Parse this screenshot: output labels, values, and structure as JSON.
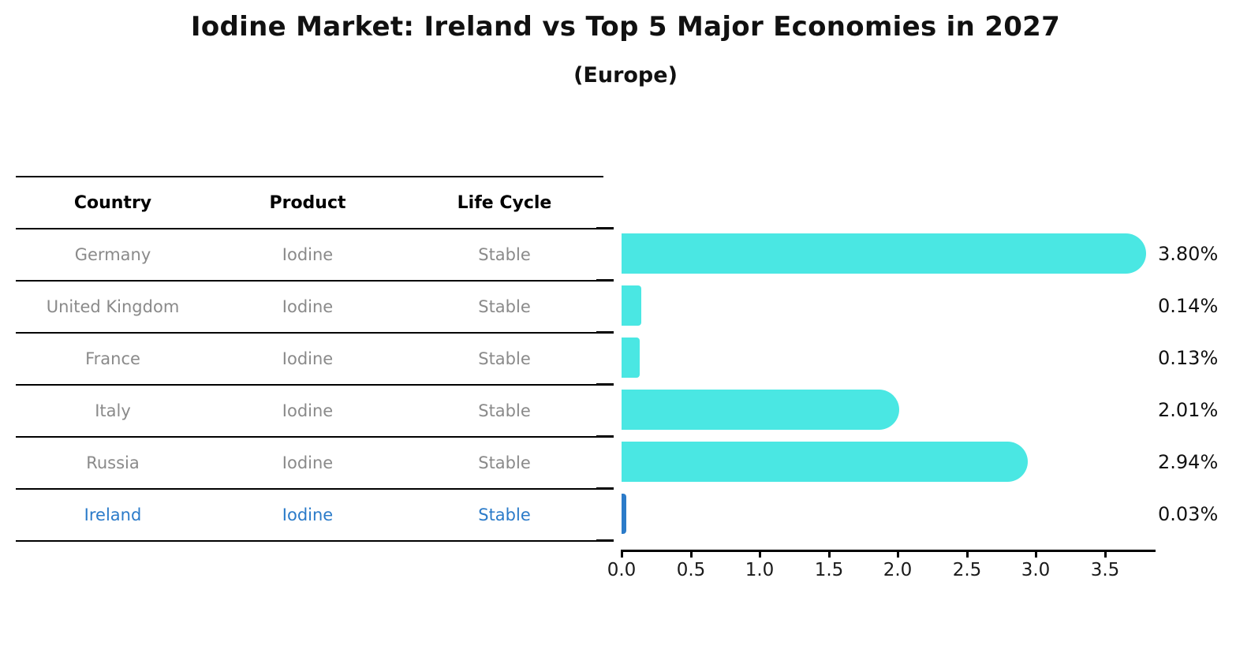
{
  "title": "Iodine Market: Ireland vs Top 5 Major Economies in 2027",
  "subtitle": "(Europe)",
  "table": {
    "headers": {
      "country": "Country",
      "product": "Product",
      "life_cycle": "Life Cycle"
    },
    "rows": [
      {
        "country": "Germany",
        "product": "Iodine",
        "life_cycle": "Stable",
        "highlight": false
      },
      {
        "country": "United Kingdom",
        "product": "Iodine",
        "life_cycle": "Stable",
        "highlight": false
      },
      {
        "country": "France",
        "product": "Iodine",
        "life_cycle": "Stable",
        "highlight": false
      },
      {
        "country": "Italy",
        "product": "Iodine",
        "life_cycle": "Stable",
        "highlight": false
      },
      {
        "country": "Russia",
        "product": "Iodine",
        "life_cycle": "Stable",
        "highlight": true
      }
    ],
    "rows_note": "sixth row is Ireland (highlighted blue)",
    "row_ireland": {
      "country": "Ireland",
      "product": "Iodine",
      "life_cycle": "Stable",
      "highlight": true
    }
  },
  "chart_data": {
    "type": "bar",
    "orientation": "horizontal",
    "title": "Iodine Market: Ireland vs Top 5 Major Economies in 2027",
    "subtitle": "(Europe)",
    "categories": [
      "Germany",
      "United Kingdom",
      "France",
      "Italy",
      "Russia",
      "Ireland"
    ],
    "values": [
      3.8,
      0.14,
      0.13,
      2.01,
      2.94,
      0.03
    ],
    "value_labels": [
      "3.80%",
      "0.14%",
      "0.13%",
      "2.01%",
      "2.94%",
      "0.03%"
    ],
    "x_ticks": [
      "0.0",
      "0.5",
      "1.0",
      "1.5",
      "2.0",
      "2.5",
      "3.0",
      "3.5"
    ],
    "xlim": [
      0,
      3.87
    ],
    "grid": false,
    "legend": "none",
    "bar_color": "#4ae7e3",
    "highlight_color": "#2b7bc9",
    "highlight_index": 5
  },
  "colors": {
    "bar_cyan": "#4ae7e3",
    "ireland_blue": "#2b7bc9",
    "table_text_gray": "#8a8a8a",
    "axis_black": "#000000"
  }
}
